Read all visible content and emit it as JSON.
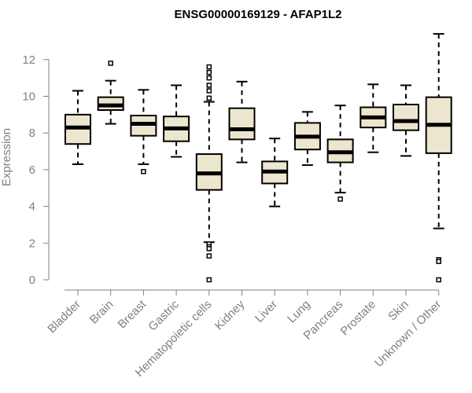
{
  "chart_data": {
    "type": "boxplot",
    "title": "ENSG00000169129 - AFAP1L2",
    "ylabel": "Expression",
    "xlabel": "",
    "ylim": [
      0,
      13.5
    ],
    "yticks": [
      0,
      2,
      4,
      6,
      8,
      10,
      12
    ],
    "grid": false,
    "box_color": "#ede6cf",
    "categories": [
      "Bladder",
      "Brain",
      "Breast",
      "Gastric",
      "Hematopoietic cells",
      "Kidney",
      "Liver",
      "Lung",
      "Pancreas",
      "Prostate",
      "Skin",
      "Unknown / Other"
    ],
    "boxes": [
      {
        "min": 6.3,
        "q1": 7.4,
        "median": 8.3,
        "q3": 9.0,
        "max": 10.3,
        "outliers": []
      },
      {
        "min": 8.5,
        "q1": 9.25,
        "median": 9.5,
        "q3": 9.95,
        "max": 10.85,
        "outliers": [
          11.8
        ]
      },
      {
        "min": 6.3,
        "q1": 7.85,
        "median": 8.5,
        "q3": 8.95,
        "max": 10.35,
        "outliers": [
          5.9
        ]
      },
      {
        "min": 6.7,
        "q1": 7.55,
        "median": 8.25,
        "q3": 8.9,
        "max": 10.6,
        "outliers": []
      },
      {
        "min": 2.05,
        "q1": 4.9,
        "median": 5.8,
        "q3": 6.85,
        "max": 9.7,
        "outliers": [
          11.6,
          11.3,
          11.0,
          10.6,
          10.3,
          9.9,
          1.95,
          1.8,
          1.7,
          1.3,
          0.0
        ]
      },
      {
        "min": 6.4,
        "q1": 7.65,
        "median": 8.2,
        "q3": 9.35,
        "max": 10.8,
        "outliers": []
      },
      {
        "min": 4.0,
        "q1": 5.25,
        "median": 5.9,
        "q3": 6.45,
        "max": 7.7,
        "outliers": []
      },
      {
        "min": 6.25,
        "q1": 7.1,
        "median": 7.8,
        "q3": 8.55,
        "max": 9.15,
        "outliers": []
      },
      {
        "min": 4.75,
        "q1": 6.4,
        "median": 6.95,
        "q3": 7.65,
        "max": 9.5,
        "outliers": [
          4.4
        ]
      },
      {
        "min": 6.95,
        "q1": 8.3,
        "median": 8.85,
        "q3": 9.4,
        "max": 10.65,
        "outliers": []
      },
      {
        "min": 6.75,
        "q1": 8.15,
        "median": 8.65,
        "q3": 9.55,
        "max": 10.6,
        "outliers": []
      },
      {
        "min": 2.8,
        "q1": 6.9,
        "median": 8.45,
        "q3": 9.95,
        "max": 13.4,
        "outliers": [
          1.1,
          1.0,
          0.0
        ]
      }
    ]
  }
}
